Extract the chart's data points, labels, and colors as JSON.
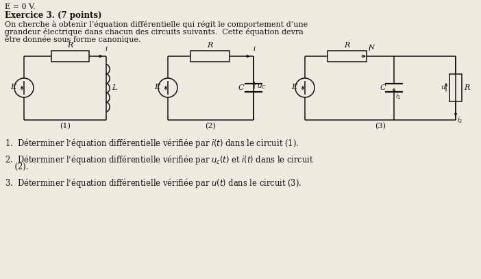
{
  "background_color": "#f0ebe0",
  "title_line": "E = 0 V.",
  "exercise_title": "Exercice 3. (7 points)",
  "intro_line1": "On cherche à obtenir l’équation différentielle qui régit le comportement d’une",
  "intro_line2": "grandeur électrique dans chacun des circuits suivants.  Cette équation devra",
  "intro_line3": "être donnée sous forme canonique.",
  "q1": "1.  Déterminer l’équation différentielle vérifiée par $i(t)$ dans le circuit (1).",
  "q2a": "2.  Déterminer l’équation différentielle vérifiée par $u_c(t)$ et $i(t)$ dans le circuit",
  "q2b": "    (2).",
  "q3": "3.  Déterminer l’équation différentielle vérifiée par $u(t)$ dans le circuit (3).",
  "text_color": "#111111",
  "circuit_color": "#111111"
}
